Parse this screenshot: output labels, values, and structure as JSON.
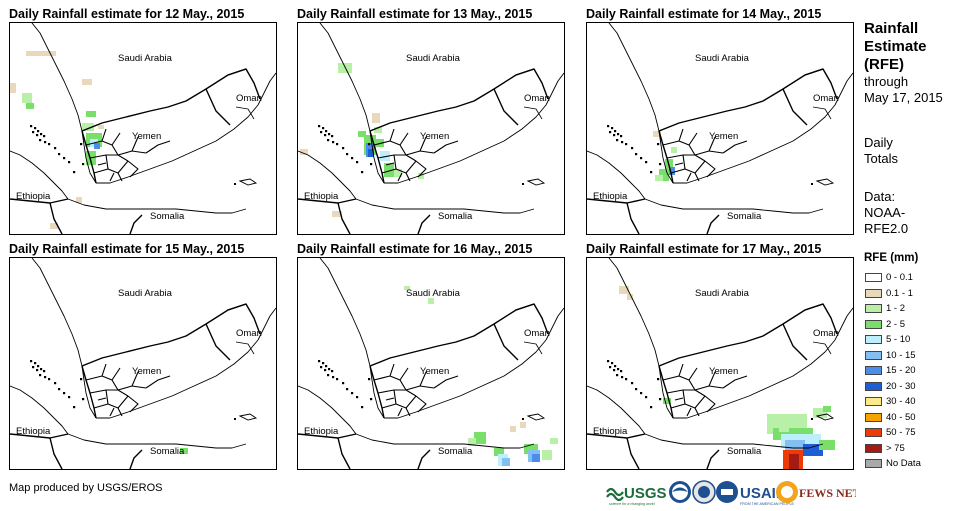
{
  "panels": [
    {
      "title": "Daily Rainfall estimate for 12 May., 2015",
      "id": "may12"
    },
    {
      "title": "Daily Rainfall estimate for 13 May., 2015",
      "id": "may13"
    },
    {
      "title": "Daily Rainfall estimate for 14 May., 2015",
      "id": "may14"
    },
    {
      "title": "Daily Rainfall estimate for 15 May., 2015",
      "id": "may15"
    },
    {
      "title": "Daily Rainfall estimate for 16 May., 2015",
      "id": "may16"
    },
    {
      "title": "Daily Rainfall estimate for 17 May., 2015",
      "id": "may17"
    }
  ],
  "map_labels": {
    "saudi_arabia": "Saudi Arabia",
    "oman": "Oman",
    "yemen": "Yemen",
    "ethiopia": "Ethiopia",
    "somalia": "Somalia"
  },
  "legend": {
    "title_line1": "Rainfall",
    "title_line2": "Estimate",
    "title_line3": "(RFE)",
    "through": "through",
    "through_date": "May 17, 2015",
    "daily_line1": "Daily",
    "daily_line2": "Totals",
    "data_line1": "Data:",
    "data_line2": "NOAA-",
    "data_line3": "RFE2.0",
    "rfe_title": "RFE (mm)",
    "items": [
      {
        "label": "0 - 0.1",
        "color": "#ffffff"
      },
      {
        "label": "0.1 - 1",
        "color": "#e8d9bd"
      },
      {
        "label": "1 - 2",
        "color": "#b9f0a8"
      },
      {
        "label": "2 - 5",
        "color": "#79df6a"
      },
      {
        "label": "5 - 10",
        "color": "#bdeefc"
      },
      {
        "label": "10 - 15",
        "color": "#84bff2"
      },
      {
        "label": "15 - 20",
        "color": "#4b8de8"
      },
      {
        "label": "20 - 30",
        "color": "#1f5fd6"
      },
      {
        "label": "30 - 40",
        "color": "#fbe98a"
      },
      {
        "label": "40 - 50",
        "color": "#f5a300"
      },
      {
        "label": "50 - 75",
        "color": "#ee3a06"
      },
      {
        "label": "> 75",
        "color": "#a51a12"
      },
      {
        "label": "No Data",
        "color": "#a9a9a9"
      }
    ]
  },
  "credit": "Map produced by USGS/EROS",
  "logos": {
    "usgs": "USGS",
    "usgs_tagline": "science for a changing world",
    "usaid": "USAID",
    "usaid_tagline": "FROM THE AMERICAN PEOPLE",
    "fews": "FEWS NET"
  }
}
